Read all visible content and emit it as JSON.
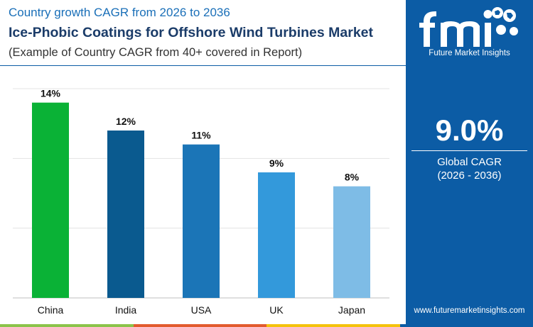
{
  "header": {
    "subtitle": "Country growth CAGR from 2026 to 2036",
    "title": "Ice-Phobic Coatings for Offshore Wind Turbines Market",
    "note": "(Example of Country CAGR from 40+ covered in Report)"
  },
  "brand": {
    "logo_name": "fmi",
    "logo_text": "Future Market Insights",
    "website": "www.futuremarketinsights.com"
  },
  "summary": {
    "value": "9.0%",
    "label": "Global CAGR",
    "period": "(2026 - 2036)"
  },
  "colors": {
    "panel": "#0c5ca5",
    "bars": [
      "#0ab236",
      "#0a5a8f",
      "#1b75b7",
      "#3399db",
      "#7ebce6"
    ],
    "strip": [
      "#8bc34a",
      "#e25b2e",
      "#f4c20d",
      "#0c5ca5"
    ]
  },
  "chart_data": {
    "type": "bar",
    "categories": [
      "China",
      "India",
      "USA",
      "UK",
      "Japan"
    ],
    "values": [
      14,
      12,
      11,
      9,
      8
    ],
    "data_labels": [
      "14%",
      "12%",
      "11%",
      "9%",
      "8%"
    ],
    "ylim": [
      0,
      15
    ],
    "unit": "%",
    "grid": true,
    "legend": "none"
  }
}
